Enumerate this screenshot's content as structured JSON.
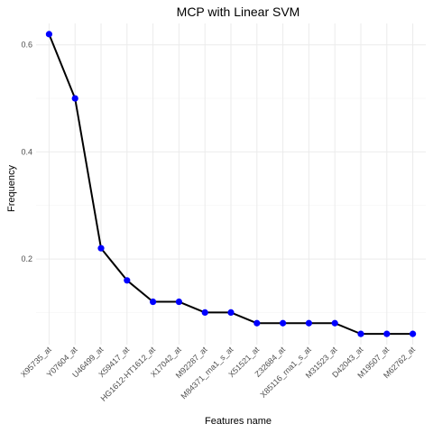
{
  "chart_data": {
    "type": "line",
    "title": "MCP with Linear SVM",
    "xlabel": "Features name",
    "ylabel": "Frequency",
    "categories": [
      "X95735_at",
      "Y07604_at",
      "U46499_at",
      "X59417_at",
      "HG1612-HT1612_at",
      "X17042_at",
      "M92287_at",
      "M84371_rna1_s_at",
      "X51521_at",
      "Z32684_at",
      "X85116_rna1_s_at",
      "M31523_at",
      "D42043_at",
      "M19507_at",
      "M62762_at"
    ],
    "values": [
      0.62,
      0.5,
      0.22,
      0.16,
      0.12,
      0.12,
      0.1,
      0.1,
      0.08,
      0.08,
      0.08,
      0.08,
      0.06,
      0.06,
      0.06
    ],
    "ylim": [
      0.04,
      0.64
    ],
    "yticks": [
      0.2,
      0.4,
      0.6
    ],
    "ytick_labels": [
      "0.2",
      "0.4",
      "0.6"
    ],
    "grid": true,
    "colors": {
      "line": "#000000",
      "point": "#0000ff",
      "grid": "#ebebeb"
    }
  }
}
